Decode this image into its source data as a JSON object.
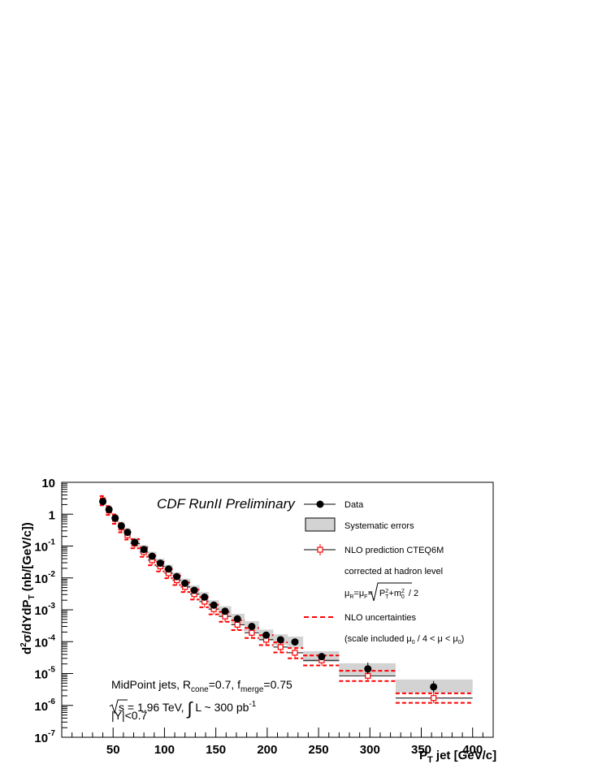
{
  "chart_data": {
    "type": "scatter",
    "title": "CDF RunII Preliminary",
    "xlabel_main": "P",
    "xlabel_sub": "T",
    "xlabel_rest": " jet [GeV/c]",
    "ylabel_parts": [
      "d",
      "2",
      "σ/dYdP",
      "T",
      " (nb/[GeV/c])"
    ],
    "xlim": [
      0,
      420
    ],
    "ylim": [
      1e-07,
      10
    ],
    "yscale": "log",
    "x_ticks": [
      {
        "v": 50,
        "label": "50"
      },
      {
        "v": 100,
        "label": "100"
      },
      {
        "v": 150,
        "label": "150"
      },
      {
        "v": 200,
        "label": "200"
      },
      {
        "v": 250,
        "label": "250"
      },
      {
        "v": 300,
        "label": "300"
      },
      {
        "v": 350,
        "label": "350"
      },
      {
        "v": 400,
        "label": "400"
      }
    ],
    "y_ticks": [
      {
        "v": 10,
        "base": "10",
        "exp": ""
      },
      {
        "v": 1,
        "base": "1",
        "exp": ""
      },
      {
        "v": 0.1,
        "base": "10",
        "exp": "-1"
      },
      {
        "v": 0.01,
        "base": "10",
        "exp": "-2"
      },
      {
        "v": 0.001,
        "base": "10",
        "exp": "-3"
      },
      {
        "v": 0.0001,
        "base": "10",
        "exp": "-4"
      },
      {
        "v": 1e-05,
        "base": "10",
        "exp": "-5"
      },
      {
        "v": 1e-06,
        "base": "10",
        "exp": "-6"
      },
      {
        "v": 1e-07,
        "base": "10",
        "exp": "-7"
      }
    ],
    "bins": [
      {
        "lo": 37,
        "hi": 43,
        "x": 40,
        "data": 2.5,
        "data_err": [
          2.1,
          3.0
        ],
        "sys": [
          1.9,
          3.4
        ],
        "nlo": 2.7,
        "nlo_band": [
          1.9,
          3.7
        ]
      },
      {
        "lo": 43,
        "hi": 49,
        "x": 46,
        "data": 1.4,
        "data_err": [
          1.2,
          1.6
        ],
        "sys": [
          1.05,
          1.85
        ],
        "nlo": 1.3,
        "nlo_band": [
          0.95,
          1.8
        ]
      },
      {
        "lo": 49,
        "hi": 55,
        "x": 52,
        "data": 0.75,
        "data_err": [
          0.66,
          0.84
        ],
        "sys": [
          0.56,
          1.0
        ],
        "nlo": 0.72,
        "nlo_band": [
          0.5,
          0.98
        ]
      },
      {
        "lo": 55,
        "hi": 61,
        "x": 58,
        "data": 0.43,
        "data_err": [
          0.38,
          0.48
        ],
        "sys": [
          0.32,
          0.58
        ],
        "nlo": 0.38,
        "nlo_band": [
          0.27,
          0.52
        ]
      },
      {
        "lo": 61,
        "hi": 67,
        "x": 64,
        "data": 0.27,
        "data_err": [
          0.24,
          0.3
        ],
        "sys": [
          0.2,
          0.37
        ],
        "nlo": 0.22,
        "nlo_band": [
          0.16,
          0.3
        ]
      },
      {
        "lo": 67,
        "hi": 76,
        "x": 71,
        "data": 0.13,
        "data_err": [
          0.115,
          0.145
        ],
        "sys": [
          0.095,
          0.18
        ],
        "nlo": 0.12,
        "nlo_band": [
          0.085,
          0.165
        ]
      },
      {
        "lo": 76,
        "hi": 84,
        "x": 80,
        "data": 0.078,
        "data_err": [
          0.07,
          0.087
        ],
        "sys": [
          0.057,
          0.107
        ],
        "nlo": 0.065,
        "nlo_band": [
          0.046,
          0.09
        ]
      },
      {
        "lo": 84,
        "hi": 92,
        "x": 88,
        "data": 0.048,
        "data_err": [
          0.043,
          0.053
        ],
        "sys": [
          0.035,
          0.066
        ],
        "nlo": 0.036,
        "nlo_band": [
          0.025,
          0.05
        ]
      },
      {
        "lo": 92,
        "hi": 100,
        "x": 96,
        "data": 0.029,
        "data_err": [
          0.026,
          0.032
        ],
        "sys": [
          0.021,
          0.04
        ],
        "nlo": 0.023,
        "nlo_band": [
          0.016,
          0.032
        ]
      },
      {
        "lo": 100,
        "hi": 108,
        "x": 104,
        "data": 0.019,
        "data_err": [
          0.017,
          0.021
        ],
        "sys": [
          0.014,
          0.026
        ],
        "nlo": 0.014,
        "nlo_band": [
          0.0098,
          0.019
        ]
      },
      {
        "lo": 108,
        "hi": 116,
        "x": 112,
        "data": 0.011,
        "data_err": [
          0.0098,
          0.0122
        ],
        "sys": [
          0.0078,
          0.015
        ],
        "nlo": 0.0085,
        "nlo_band": [
          0.006,
          0.0118
        ]
      },
      {
        "lo": 116,
        "hi": 125,
        "x": 120,
        "data": 0.0068,
        "data_err": [
          0.006,
          0.0076
        ],
        "sys": [
          0.0048,
          0.0095
        ],
        "nlo": 0.0052,
        "nlo_band": [
          0.0036,
          0.0072
        ]
      },
      {
        "lo": 125,
        "hi": 134,
        "x": 129,
        "data": 0.0041,
        "data_err": [
          0.0036,
          0.0046
        ],
        "sys": [
          0.0029,
          0.0058
        ],
        "nlo": 0.0031,
        "nlo_band": [
          0.0021,
          0.0043
        ]
      },
      {
        "lo": 134,
        "hi": 143,
        "x": 139,
        "data": 0.0025,
        "data_err": [
          0.0022,
          0.0028
        ],
        "sys": [
          0.0018,
          0.0036
        ],
        "nlo": 0.0018,
        "nlo_band": [
          0.0012,
          0.0025
        ]
      },
      {
        "lo": 143,
        "hi": 153,
        "x": 148,
        "data": 0.0014,
        "data_err": [
          0.00125,
          0.00155
        ],
        "sys": [
          0.001,
          0.002
        ],
        "nlo": 0.00105,
        "nlo_band": [
          0.00072,
          0.00145
        ]
      },
      {
        "lo": 153,
        "hi": 165,
        "x": 159,
        "data": 0.0009,
        "data_err": [
          0.0008,
          0.001
        ],
        "sys": [
          0.00064,
          0.0013
        ],
        "nlo": 0.00062,
        "nlo_band": [
          0.00042,
          0.00086
        ]
      },
      {
        "lo": 165,
        "hi": 178,
        "x": 171,
        "data": 0.00052,
        "data_err": [
          0.00046,
          0.00058
        ],
        "sys": [
          0.00036,
          0.00075
        ],
        "nlo": 0.00034,
        "nlo_band": [
          0.00023,
          0.00047
        ]
      },
      {
        "lo": 178,
        "hi": 192,
        "x": 185,
        "data": 0.0003,
        "data_err": [
          0.00026,
          0.00034
        ],
        "sys": [
          0.00021,
          0.00044
        ],
        "nlo": 0.00019,
        "nlo_band": [
          0.00013,
          0.00027
        ]
      },
      {
        "lo": 192,
        "hi": 206,
        "x": 199,
        "data": 0.00016,
        "data_err": [
          0.00014,
          0.00018
        ],
        "sys": [
          0.00011,
          0.00024
        ],
        "nlo": 0.000115,
        "nlo_band": [
          7.8e-05,
          0.00016
        ]
      },
      {
        "lo": 206,
        "hi": 220,
        "x": 213,
        "data": 0.000115,
        "data_err": [
          0.0001,
          0.00013
        ],
        "sys": [
          7.8e-05,
          0.00017
        ],
        "nlo": 6.8e-05,
        "nlo_band": [
          4.6e-05,
          9.5e-05
        ]
      },
      {
        "lo": 220,
        "hi": 235,
        "x": 227,
        "data": 9.8e-05,
        "data_err": [
          8.5e-05,
          0.000112
        ],
        "sys": [
          6.6e-05,
          0.000145
        ],
        "nlo": 4.5e-05,
        "nlo_band": [
          3e-05,
          6.3e-05
        ]
      },
      {
        "lo": 235,
        "hi": 270,
        "x": 253,
        "data": 3.4e-05,
        "data_err": [
          2.8e-05,
          4e-05
        ],
        "sys": [
          2.3e-05,
          5e-05
        ],
        "nlo": 2.6e-05,
        "nlo_band": [
          1.8e-05,
          3.7e-05
        ]
      },
      {
        "lo": 270,
        "hi": 325,
        "x": 298,
        "data": 1.4e-05,
        "data_err": [
          9.5e-06,
          2.2e-05
        ],
        "sys": [
          9.3e-06,
          2.1e-05
        ],
        "nlo": 8.5e-06,
        "nlo_band": [
          5.8e-06,
          1.22e-05
        ]
      },
      {
        "lo": 325,
        "hi": 400,
        "x": 362,
        "data": 3.8e-06,
        "data_err": [
          2.5e-06,
          5.8e-06
        ],
        "sys": [
          2.5e-06,
          6.5e-06
        ],
        "nlo": 1.7e-06,
        "nlo_band": [
          1.2e-06,
          2.4e-06
        ]
      }
    ],
    "legend": {
      "data": "Data",
      "sys": "Systematic errors",
      "nlo": "NLO prediction CTEQ6M",
      "corrected": "corrected at hadron level",
      "mu_formula": "μR=μF=√(P²T+m²0) / 2",
      "mu_parts": [
        "μ",
        "R",
        "=μ",
        "F",
        "=",
        "P",
        "2",
        "T",
        "+m",
        "2",
        "0",
        " / 2"
      ],
      "nlo_unc": "NLO uncertainties",
      "scale": "(scale included μ0 / 4 < μ < μ0)",
      "scale_parts": [
        "(scale included μ",
        "0",
        " / 4 < μ < μ",
        "0",
        ")"
      ],
      "placement": "top-right"
    },
    "annotations": {
      "line1": "MidPoint jets, Rcone=0.7, fmerge=0.75",
      "line1_parts": [
        "MidPoint jets, R",
        "cone",
        "=0.7, f",
        "merge",
        "=0.75"
      ],
      "line2": "√s = 1.96 TeV, ∫ L ~ 300 pb-1",
      "line2_parts": [
        "s = 1.96 TeV, ",
        "∫",
        " L ~ 300 pb",
        "-1"
      ],
      "line3": "|Y|<0.7"
    },
    "colors": {
      "data": "#000000",
      "sys_fill": "#d3d3d3",
      "nlo": "#ff0000",
      "frame": "#000000"
    },
    "grid": false
  }
}
